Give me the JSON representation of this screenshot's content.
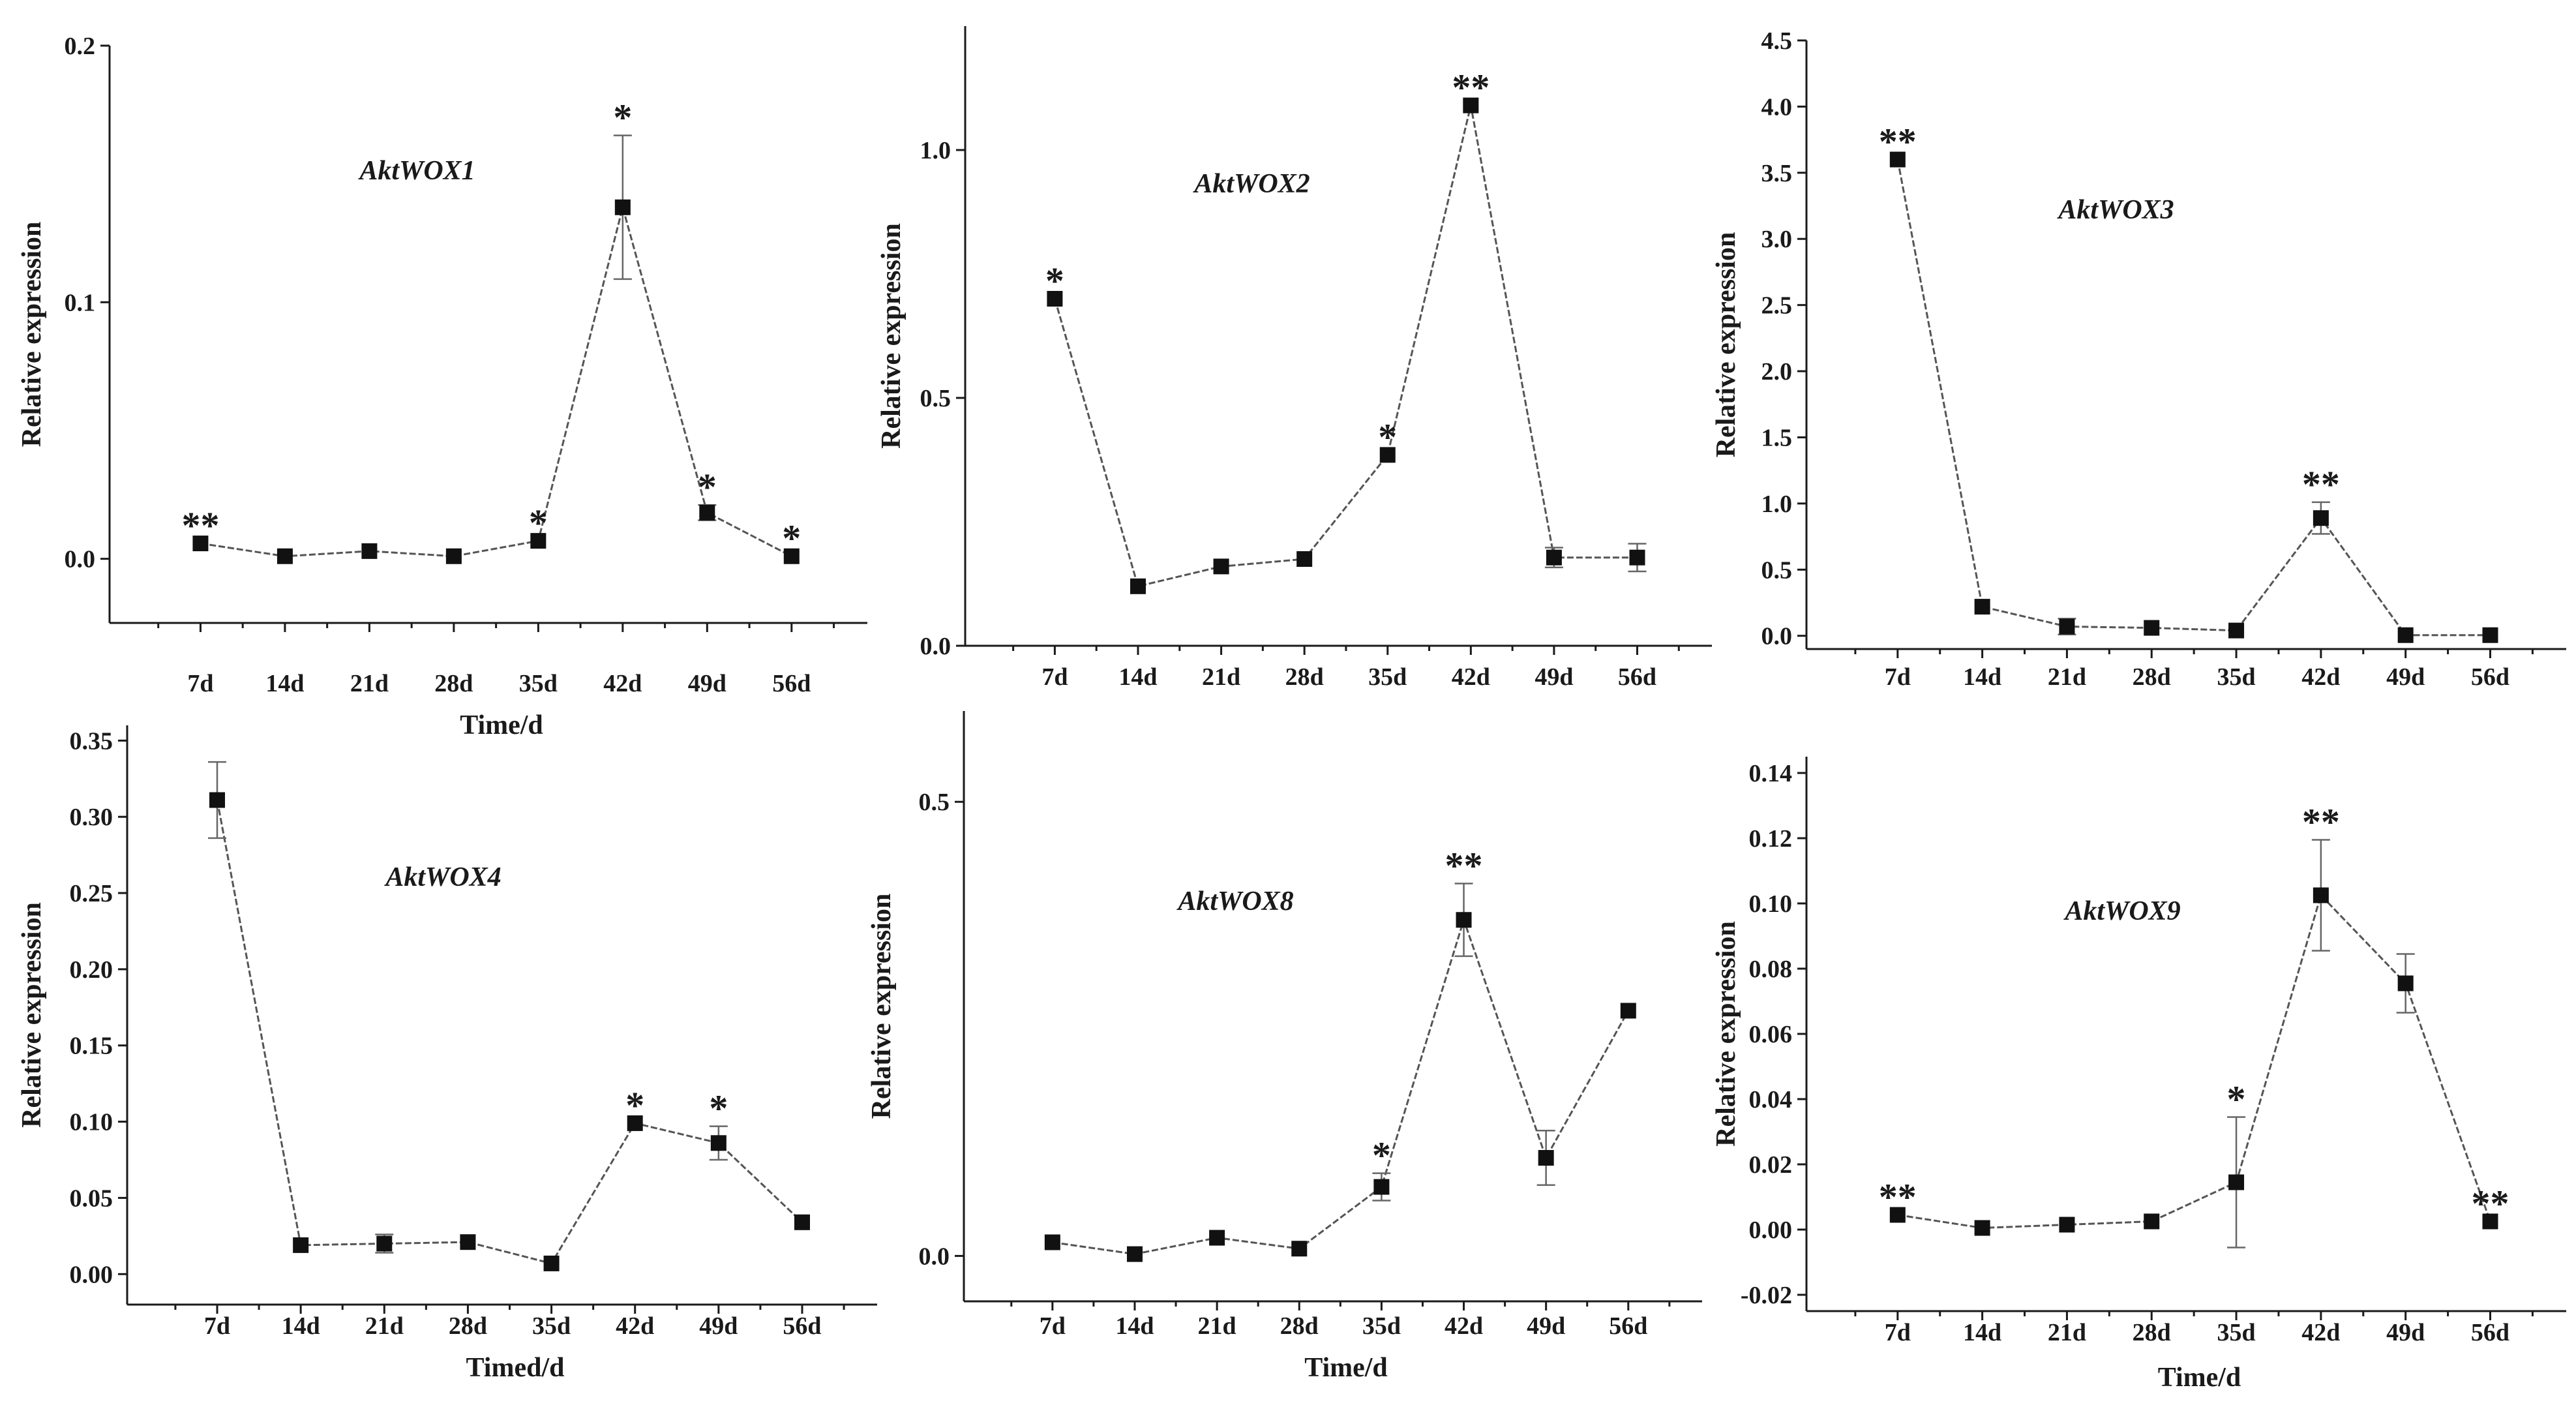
{
  "chart_data": [
    {
      "type": "line",
      "title": "AktWOX1",
      "xlabel": "Time/d",
      "ylabel": "Relative expression",
      "categories": [
        "7d",
        "14d",
        "21d",
        "28d",
        "35d",
        "42d",
        "49d",
        "56d"
      ],
      "values": [
        0.006,
        0.001,
        0.003,
        0.001,
        0.007,
        0.137,
        0.018,
        0.001
      ],
      "errors": [
        0,
        0,
        0,
        0,
        0,
        0.028,
        0.003,
        0
      ],
      "significance": [
        "**",
        "",
        "",
        "",
        "*",
        "*",
        "*",
        "*"
      ],
      "yticks": [
        "0.0",
        "0.1",
        "0.2"
      ],
      "ytick_values": [
        0,
        0.1,
        0.2
      ],
      "ylim": [
        -0.025,
        0.2
      ]
    },
    {
      "type": "line",
      "title": "AktWOX2",
      "xlabel": "",
      "ylabel": "Relative expression",
      "categories": [
        "7d",
        "14d",
        "21d",
        "28d",
        "35d",
        "42d",
        "49d",
        "56d"
      ],
      "values": [
        0.7,
        0.12,
        0.16,
        0.175,
        0.385,
        1.09,
        0.178,
        0.178
      ],
      "errors": [
        0,
        0,
        0,
        0,
        0,
        0,
        0.02,
        0.028
      ],
      "significance": [
        "*",
        "",
        "",
        "",
        "*",
        "**",
        "",
        ""
      ],
      "yticks": [
        "0.0",
        "0.5",
        "1.0"
      ],
      "ytick_values": [
        0,
        0.5,
        1.0
      ],
      "ylim": [
        0,
        1.25
      ]
    },
    {
      "type": "line",
      "title": "AktWOX3",
      "xlabel": "",
      "ylabel": "Relative expression",
      "categories": [
        "7d",
        "14d",
        "21d",
        "28d",
        "35d",
        "42d",
        "49d",
        "56d"
      ],
      "values": [
        3.6,
        0.22,
        0.07,
        0.06,
        0.04,
        0.89,
        0.005,
        0.005
      ],
      "errors": [
        0,
        0,
        0.06,
        0,
        0,
        0.12,
        0,
        0
      ],
      "significance": [
        "**",
        "",
        "",
        "",
        "",
        "**",
        "",
        ""
      ],
      "yticks": [
        "0.0",
        "0.5",
        "1.0",
        "1.5",
        "2.0",
        "2.5",
        "3.0",
        "3.5",
        "4.0",
        "4.5"
      ],
      "ytick_values": [
        0,
        0.5,
        1.0,
        1.5,
        2.0,
        2.5,
        3.0,
        3.5,
        4.0,
        4.5
      ],
      "ylim": [
        -0.1,
        4.5
      ]
    },
    {
      "type": "line",
      "title": "AktWOX4",
      "xlabel": "Timed/d",
      "ylabel": "Relative expression",
      "categories": [
        "7d",
        "14d",
        "21d",
        "28d",
        "35d",
        "42d",
        "49d",
        "56d"
      ],
      "values": [
        0.311,
        0.019,
        0.02,
        0.021,
        0.007,
        0.099,
        0.086,
        0.034
      ],
      "errors": [
        0.025,
        0,
        0.006,
        0,
        0,
        0,
        0.011,
        0
      ],
      "significance": [
        "",
        "",
        "",
        "",
        "",
        "*",
        "*",
        ""
      ],
      "yticks": [
        "0.00",
        "0.05",
        "0.10",
        "0.15",
        "0.20",
        "0.25",
        "0.30",
        "0.35"
      ],
      "ytick_values": [
        0,
        0.05,
        0.1,
        0.15,
        0.2,
        0.25,
        0.3,
        0.35
      ],
      "ylim": [
        -0.02,
        0.36
      ]
    },
    {
      "type": "line",
      "title": "AktWOX8",
      "xlabel": "Time/d",
      "ylabel": "Relative expression",
      "categories": [
        "7d",
        "14d",
        "21d",
        "28d",
        "35d",
        "42d",
        "49d",
        "56d"
      ],
      "values": [
        0.015,
        0.002,
        0.02,
        0.008,
        0.076,
        0.37,
        0.108,
        0.27
      ],
      "errors": [
        0,
        0,
        0,
        0,
        0.015,
        0.04,
        0.03,
        0
      ],
      "significance": [
        "",
        "",
        "",
        "",
        "*",
        "**",
        "",
        ""
      ],
      "yticks": [
        "0.0",
        "0.5"
      ],
      "ytick_values": [
        0,
        0.5
      ],
      "ylim": [
        -0.05,
        0.6
      ]
    },
    {
      "type": "line",
      "title": "AktWOX9",
      "xlabel": "Time/d",
      "ylabel": "Relative expression",
      "categories": [
        "7d",
        "14d",
        "21d",
        "28d",
        "35d",
        "42d",
        "49d",
        "56d"
      ],
      "values": [
        0.0045,
        0.0005,
        0.0015,
        0.0025,
        0.0145,
        0.1025,
        0.0755,
        0.0025
      ],
      "errors": [
        0,
        0,
        0,
        0,
        0.02,
        0.017,
        0.009,
        0
      ],
      "significance": [
        "**",
        "",
        "",
        "",
        "*",
        "**",
        "",
        "**"
      ],
      "yticks": [
        "-0.02",
        "0.00",
        "0.02",
        "0.04",
        "0.06",
        "0.08",
        "0.10",
        "0.12",
        "0.14"
      ],
      "ytick_values": [
        -0.02,
        0,
        0.02,
        0.04,
        0.06,
        0.08,
        0.1,
        0.12,
        0.14
      ],
      "ylim": [
        -0.025,
        0.145
      ]
    }
  ]
}
